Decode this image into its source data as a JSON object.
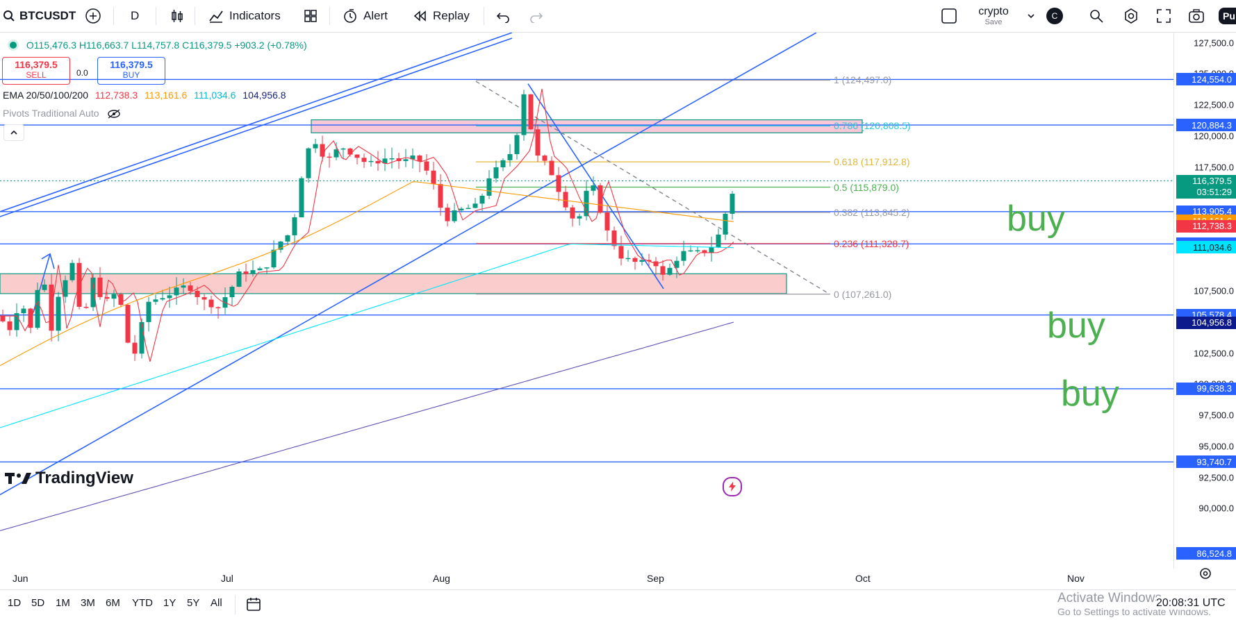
{
  "toolbar": {
    "symbol": "BTCUSDT",
    "interval": "D",
    "indicators_label": "Indicators",
    "alert_label": "Alert",
    "replay_label": "Replay",
    "layout_name": "crypto",
    "layout_sub": "Save",
    "avatar_letter": "C",
    "publish_partial": "Pu"
  },
  "ohlc": {
    "open": "O115,476.3",
    "high": "H116,663.7",
    "low": "L114,757.8",
    "close": "C116,379.5",
    "change": "+903.2 (+0.78%)"
  },
  "trade": {
    "sell_price": "116,379.5",
    "sell_label": "SELL",
    "spread": "0.0",
    "buy_price": "116,379.5",
    "buy_label": "BUY"
  },
  "ema": {
    "label": "EMA 20/50/100/200",
    "v20": "112,738.3",
    "v50": "113,161.6",
    "v100": "111,034.6",
    "v200": "104,956.8"
  },
  "pivots_label": "Pivots Traditional Auto",
  "fib": [
    {
      "label": "1 (124,497.0)",
      "price": 124497,
      "color": "#9598a1"
    },
    {
      "label": "0.786 (120,808.5)",
      "price": 120808.5,
      "color": "#26c6da"
    },
    {
      "label": "0.618 (117,912.8)",
      "price": 117912.8,
      "color": "#e0b733"
    },
    {
      "label": "0.5 (115,879.0)",
      "price": 115879,
      "color": "#4caf50"
    },
    {
      "label": "0.382 (113,845.2)",
      "price": 113845.2,
      "color": "#9598a1"
    },
    {
      "label": "0.236 (111,328.7)",
      "price": 111328.7,
      "color": "#f23645"
    },
    {
      "label": "0 (107,261.0)",
      "price": 107261,
      "color": "#9598a1"
    }
  ],
  "annotations": {
    "buy1": "buy",
    "buy2": "buy",
    "buy3": "buy"
  },
  "price_axis": {
    "ticks": [
      "127,500.0",
      "125,000.0",
      "122,500.0",
      "120,000.0",
      "117,500.0",
      "107,500.0",
      "102,500.0",
      "100,000.0",
      "97,500.0",
      "95,000.0",
      "92,500.0",
      "90,000.0"
    ],
    "labels": [
      {
        "text": "124,554.0",
        "price": 124554,
        "color": "#2962ff"
      },
      {
        "text": "120,884.3",
        "price": 120884.3,
        "color": "#2962ff"
      },
      {
        "text": "116,379.5",
        "price": 116379.5,
        "color": "#089981"
      },
      {
        "text": "03:51:29",
        "price": 115900,
        "color": "#089981"
      },
      {
        "text": "113,905.4",
        "price": 113905.4,
        "color": "#2962ff"
      },
      {
        "text": "113,161.6",
        "price": 113161.6,
        "color": "#ff9800"
      },
      {
        "text": "112,738.3",
        "price": 112738.3,
        "color": "#f23645"
      },
      {
        "text": "111,306.3",
        "price": 111306.3,
        "color": "#2962ff"
      },
      {
        "text": "111,034.6",
        "price": 111034.6,
        "color": "#00e5ff"
      },
      {
        "text": "105,578.4",
        "price": 105578.4,
        "color": "#2962ff"
      },
      {
        "text": "104,956.8",
        "price": 104956.8,
        "color": "#0d1a8c"
      },
      {
        "text": "99,638.3",
        "price": 99638.3,
        "color": "#2962ff"
      },
      {
        "text": "93,740.7",
        "price": 93740.7,
        "color": "#2962ff"
      },
      {
        "text": "86,524.8",
        "price": 86524.8,
        "color": "#2962ff"
      }
    ]
  },
  "time_axis": [
    "Jun",
    "Jul",
    "Aug",
    "Sep",
    "Oct",
    "Nov"
  ],
  "bottom": {
    "ranges": [
      "1D",
      "5D",
      "1M",
      "3M",
      "6M",
      "YTD",
      "1Y",
      "5Y",
      "All"
    ],
    "clock": "20:08:31 UTC",
    "activate_title": "Activate Windows",
    "activate_sub": "Go to Settings to activate Windows."
  },
  "brand": "TradingView",
  "colors": {
    "up": "#089981",
    "down": "#f23645",
    "line_blue": "#2962ff",
    "buy_text": "#4caf50"
  }
}
